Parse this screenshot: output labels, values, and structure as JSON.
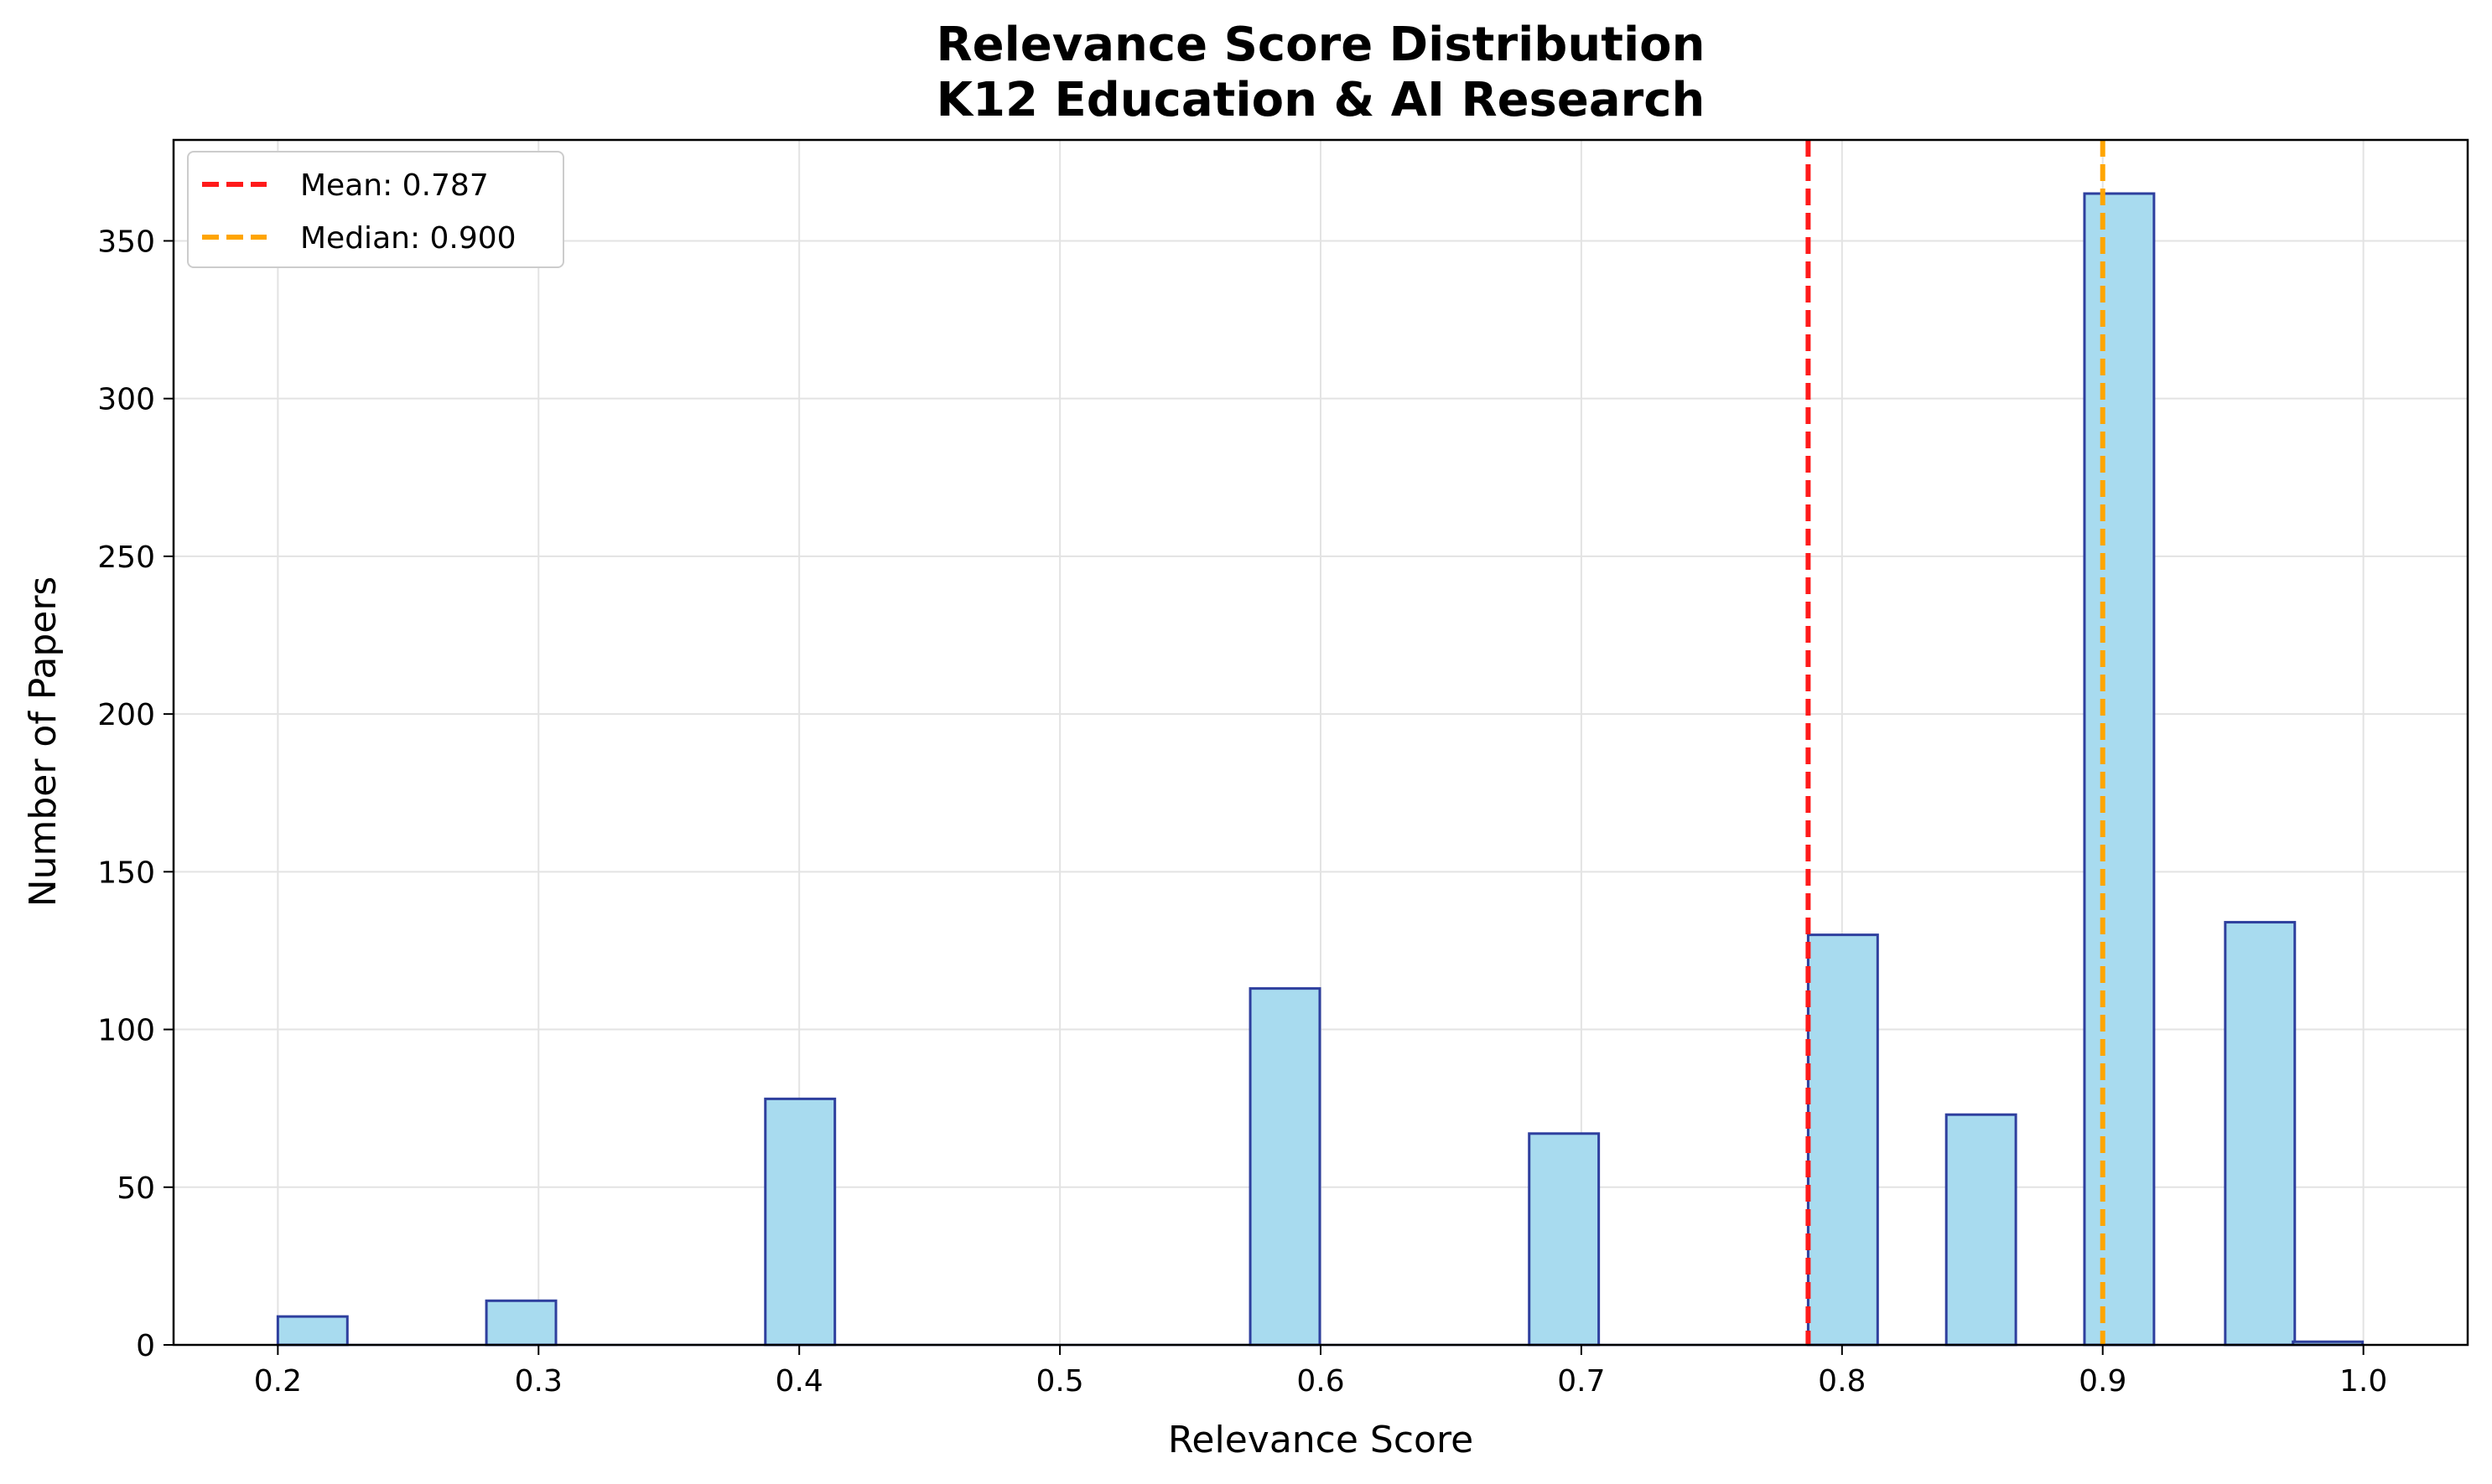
{
  "chart_data": {
    "type": "bar",
    "title_line1": "Relevance Score Distribution",
    "title_line2": "K12 Education & AI Research",
    "xlabel": "Relevance Score",
    "ylabel": "Number of Papers",
    "xlim": [
      0.16,
      1.04
    ],
    "ylim": [
      0,
      382
    ],
    "xticks": [
      "0.2",
      "0.3",
      "0.4",
      "0.5",
      "0.6",
      "0.7",
      "0.8",
      "0.9",
      "1.0"
    ],
    "yticks": [
      "0",
      "50",
      "100",
      "150",
      "200",
      "250",
      "300",
      "350"
    ],
    "bin_width": 0.02667,
    "bins": [
      {
        "start": 0.2,
        "count": 9
      },
      {
        "start": 0.28,
        "count": 14
      },
      {
        "start": 0.387,
        "count": 78
      },
      {
        "start": 0.573,
        "count": 113
      },
      {
        "start": 0.68,
        "count": 67
      },
      {
        "start": 0.787,
        "count": 130
      },
      {
        "start": 0.84,
        "count": 73
      },
      {
        "start": 0.893,
        "count": 365
      },
      {
        "start": 0.947,
        "count": 134
      },
      {
        "start": 0.973,
        "count": 1
      }
    ],
    "bar_fill": "#a8dbef",
    "bar_edge": "#2e3f9e",
    "grid": true,
    "legend_position": "top-left",
    "reference_lines": [
      {
        "label": "Mean: 0.787",
        "x": 0.787,
        "color": "#ff1a1a"
      },
      {
        "label": "Median: 0.900",
        "x": 0.9,
        "color": "#ffa500"
      }
    ]
  }
}
